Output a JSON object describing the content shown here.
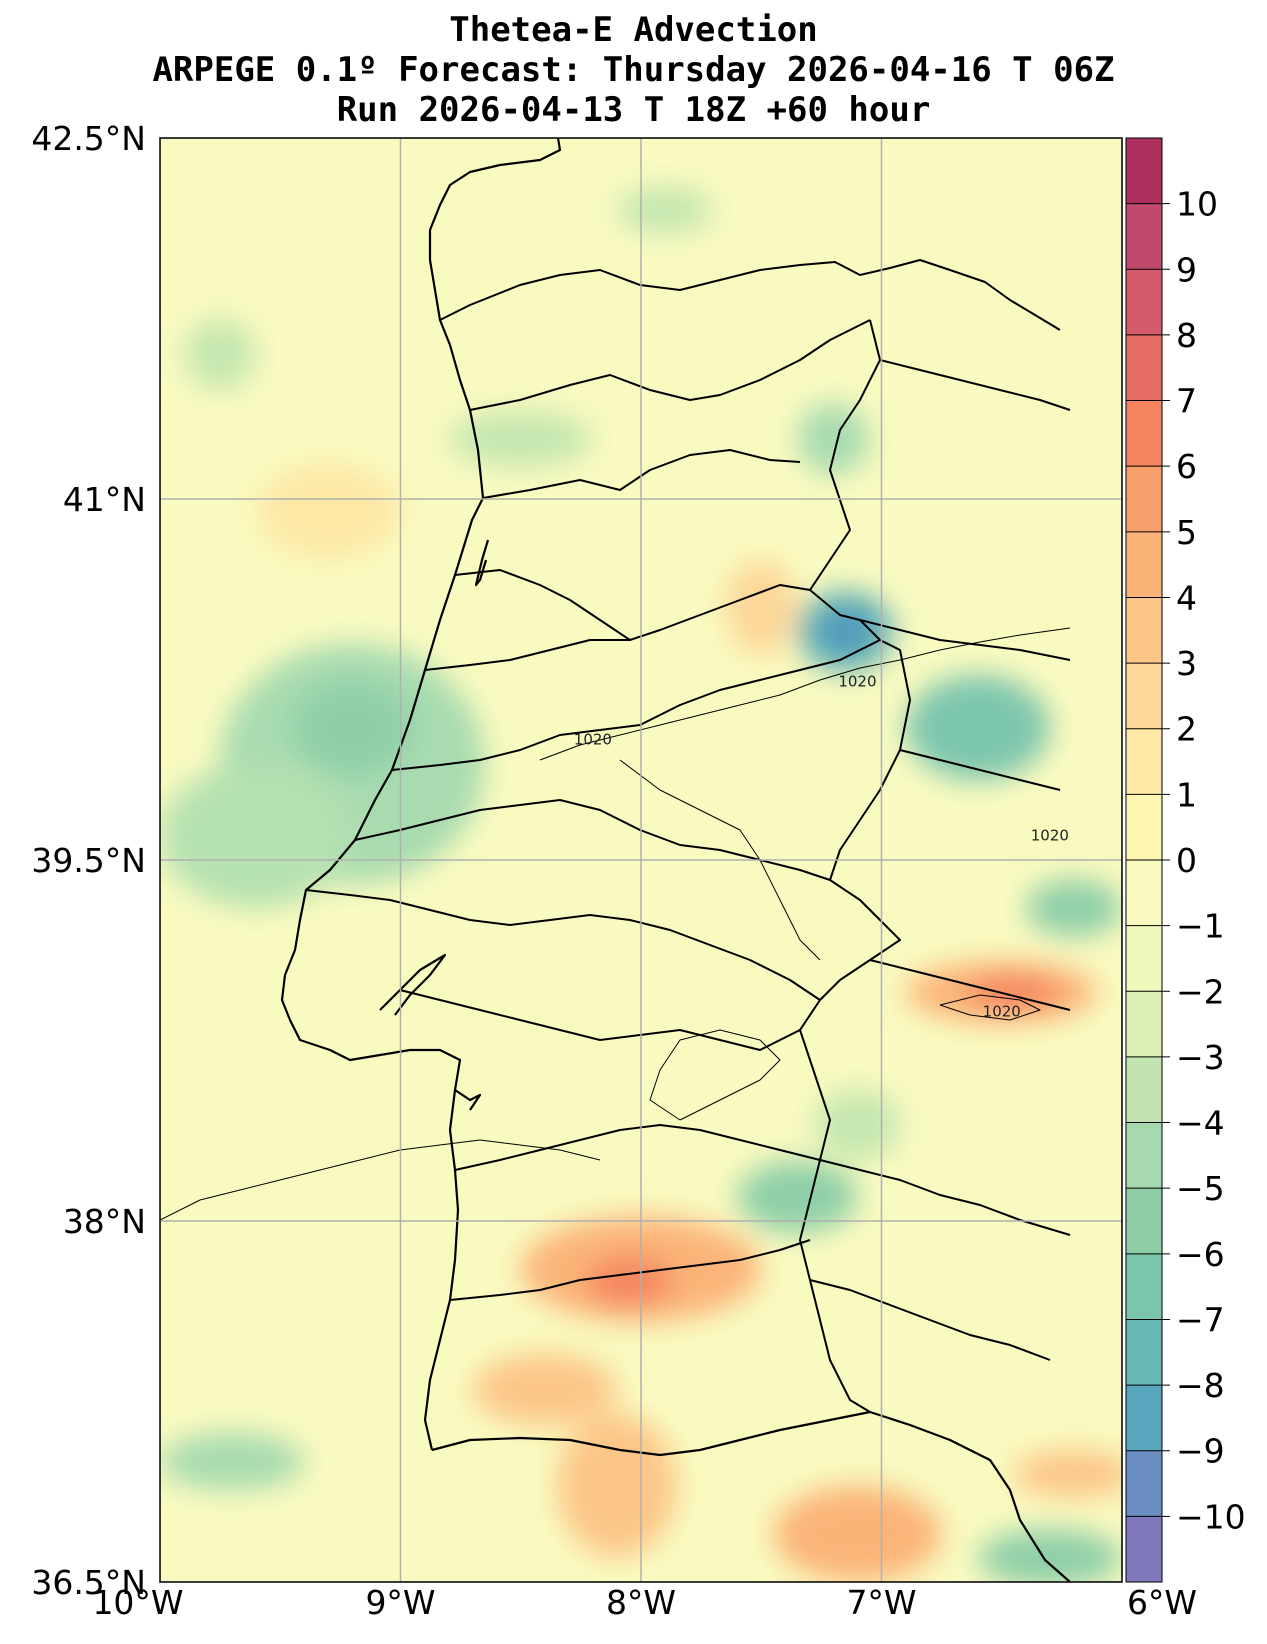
{
  "title": {
    "line1": "Thetea-E Advection",
    "line2": "ARPEGE 0.1º Forecast: Thursday 2026-04-16 T 06Z",
    "line3": "Run 2026-04-13 T 18Z +60 hour"
  },
  "map": {
    "lon_range": [
      -10,
      -6
    ],
    "lat_range": [
      36.5,
      42.5
    ],
    "lon_ticks": [
      {
        "value": -10,
        "label": "10°W"
      },
      {
        "value": -9,
        "label": "9°W"
      },
      {
        "value": -8,
        "label": "8°W"
      },
      {
        "value": -7,
        "label": "7°W"
      },
      {
        "value": -6,
        "label": "6°W"
      }
    ],
    "lat_ticks": [
      {
        "value": 42.5,
        "label": "42.5°N"
      },
      {
        "value": 41,
        "label": "41°N"
      },
      {
        "value": 39.5,
        "label": "39.5°N"
      },
      {
        "value": 38,
        "label": "38°N"
      },
      {
        "value": 36.5,
        "label": "36.5°N"
      }
    ],
    "background_color": "#f9fac0",
    "gridline_color": "#b0b0b0",
    "contour_labels": [
      {
        "text": "1020",
        "lon": -7.1,
        "lat": 40.22
      },
      {
        "text": "1020",
        "lon": -8.2,
        "lat": 39.98
      },
      {
        "text": "1020",
        "lon": -6.3,
        "lat": 39.58
      },
      {
        "text": "1020",
        "lon": -6.5,
        "lat": 38.85
      }
    ],
    "anomalies": [
      {
        "lon": -9.2,
        "lat": 39.9,
        "rx": 0.55,
        "ry": 0.5,
        "value": -4,
        "color": "#a8dbb0"
      },
      {
        "lon": -9.6,
        "lat": 39.6,
        "rx": 0.4,
        "ry": 0.3,
        "value": -4,
        "color": "#b6e1b1"
      },
      {
        "lon": -9.2,
        "lat": 40.05,
        "rx": 0.25,
        "ry": 0.2,
        "value": -5,
        "color": "#8ecfa8"
      },
      {
        "lon": -9.3,
        "lat": 40.95,
        "rx": 0.3,
        "ry": 0.2,
        "value": 1,
        "color": "#fde8a6"
      },
      {
        "lon": -7.15,
        "lat": 40.45,
        "rx": 0.2,
        "ry": 0.17,
        "value": -7,
        "color": "#62b1b4"
      },
      {
        "lon": -7.15,
        "lat": 40.45,
        "rx": 0.1,
        "ry": 0.08,
        "value": -8,
        "color": "#4d94c0"
      },
      {
        "lon": -6.6,
        "lat": 40.05,
        "rx": 0.3,
        "ry": 0.22,
        "value": -6,
        "color": "#7dc6ae"
      },
      {
        "lon": -6.2,
        "lat": 39.3,
        "rx": 0.2,
        "ry": 0.12,
        "value": -5,
        "color": "#8ecfa8"
      },
      {
        "lon": -7.5,
        "lat": 40.55,
        "rx": 0.15,
        "ry": 0.2,
        "value": 2,
        "color": "#fdd799"
      },
      {
        "lon": -6.5,
        "lat": 38.95,
        "rx": 0.4,
        "ry": 0.13,
        "value": 4,
        "color": "#fbb478"
      },
      {
        "lon": -6.45,
        "lat": 38.95,
        "rx": 0.2,
        "ry": 0.07,
        "value": 6,
        "color": "#f4845f"
      },
      {
        "lon": -7.35,
        "lat": 38.1,
        "rx": 0.25,
        "ry": 0.15,
        "value": -5,
        "color": "#8ecfa8"
      },
      {
        "lon": -8.0,
        "lat": 37.8,
        "rx": 0.5,
        "ry": 0.22,
        "value": 4,
        "color": "#fbb478"
      },
      {
        "lon": -8.05,
        "lat": 37.75,
        "rx": 0.18,
        "ry": 0.1,
        "value": 6,
        "color": "#f4845f"
      },
      {
        "lon": -8.1,
        "lat": 36.9,
        "rx": 0.25,
        "ry": 0.3,
        "value": 3,
        "color": "#fcc688"
      },
      {
        "lon": -8.4,
        "lat": 37.3,
        "rx": 0.3,
        "ry": 0.15,
        "value": 3,
        "color": "#fcc688"
      },
      {
        "lon": -7.1,
        "lat": 36.7,
        "rx": 0.35,
        "ry": 0.2,
        "value": 4,
        "color": "#fbb478"
      },
      {
        "lon": -6.3,
        "lat": 36.6,
        "rx": 0.3,
        "ry": 0.12,
        "value": -5,
        "color": "#8ecfa8"
      },
      {
        "lon": -6.2,
        "lat": 36.95,
        "rx": 0.25,
        "ry": 0.1,
        "value": 3,
        "color": "#fcc688"
      },
      {
        "lon": -7.2,
        "lat": 41.25,
        "rx": 0.15,
        "ry": 0.15,
        "value": -4,
        "color": "#a8dbb0"
      },
      {
        "lon": -8.5,
        "lat": 41.25,
        "rx": 0.3,
        "ry": 0.12,
        "value": -3,
        "color": "#c6e7b0"
      },
      {
        "lon": -7.9,
        "lat": 42.2,
        "rx": 0.2,
        "ry": 0.1,
        "value": -3,
        "color": "#c6e7b0"
      },
      {
        "lon": -9.75,
        "lat": 41.6,
        "rx": 0.15,
        "ry": 0.15,
        "value": -3,
        "color": "#c6e7b0"
      },
      {
        "lon": -9.7,
        "lat": 37.0,
        "rx": 0.3,
        "ry": 0.12,
        "value": -4,
        "color": "#a8dbb0"
      },
      {
        "lon": -7.1,
        "lat": 38.4,
        "rx": 0.18,
        "ry": 0.15,
        "value": -3,
        "color": "#c6e7b0"
      }
    ]
  },
  "colorbar": {
    "ticks": [
      10,
      9,
      8,
      7,
      6,
      5,
      4,
      3,
      2,
      1,
      0,
      -1,
      -2,
      -3,
      -4,
      -5,
      -6,
      -7,
      -8,
      -9,
      -10
    ],
    "labels": [
      "10",
      "9",
      "8",
      "7",
      "6",
      "5",
      "4",
      "3",
      "2",
      "1",
      "0",
      "−1",
      "−2",
      "−3",
      "−4",
      "−5",
      "−6",
      "−7",
      "−8",
      "−9",
      "−10"
    ],
    "range": [
      -11,
      11
    ],
    "colors": [
      "#7f79bb",
      "#6a8ec1",
      "#5ba6bf",
      "#67b7b3",
      "#7dc6ae",
      "#8ecfa8",
      "#a6d9ad",
      "#c1e4b1",
      "#dbefb4",
      "#eff8ba",
      "#f9fac0",
      "#fdf5b2",
      "#fde8a6",
      "#fdd799",
      "#fcc688",
      "#fbb478",
      "#f8a06b",
      "#f4845f",
      "#e66d66",
      "#d35b6c",
      "#c04a6e",
      "#ad2f5e"
    ]
  }
}
